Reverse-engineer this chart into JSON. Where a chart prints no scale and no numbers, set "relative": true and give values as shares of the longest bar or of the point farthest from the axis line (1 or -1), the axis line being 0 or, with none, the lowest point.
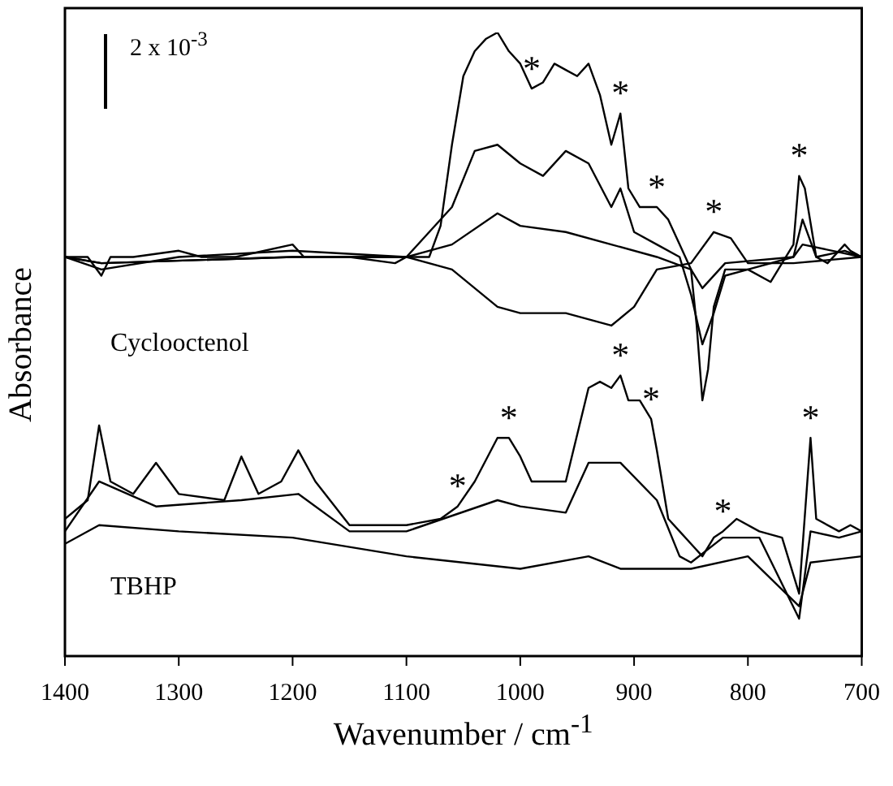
{
  "chart_data": {
    "type": "line",
    "relative": true,
    "xlabel": "Wavenumber / cm$^{-1}$",
    "ylabel": "Absorbance",
    "xlim": [
      1400,
      700
    ],
    "xticks": [
      1400,
      1300,
      1200,
      1100,
      1000,
      900,
      800,
      700
    ],
    "grid": false,
    "legend": false,
    "marker": "none",
    "line_style": "solid",
    "tick_labels": "x",
    "annotations": [
      "2 x 10$^{-3}$",
      "Cyclooctenol",
      "TBHP",
      {
        "text": "*",
        "x": 990,
        "y": 0.91
      },
      {
        "text": "*",
        "x": 912,
        "y": 0.87
      },
      {
        "text": "*",
        "x": 880,
        "y": 0.72
      },
      {
        "text": "*",
        "x": 830,
        "y": 0.68
      },
      {
        "text": "*",
        "x": 755,
        "y": 0.77
      },
      {
        "text": "*",
        "x": 1055,
        "y": 0.24
      },
      {
        "text": "*",
        "x": 1010,
        "y": 0.35
      },
      {
        "text": "*",
        "x": 912,
        "y": 0.45
      },
      {
        "text": "*",
        "x": 885,
        "y": 0.38
      },
      {
        "text": "*",
        "x": 822,
        "y": 0.2
      },
      {
        "text": "*",
        "x": 745,
        "y": 0.35
      }
    ],
    "series": [
      {
        "color": "#000000",
        "x": [
          1400,
          1380,
          1368,
          1360,
          1340,
          1300,
          1280,
          1250,
          1200,
          1190,
          1150,
          1110,
          1100,
          1080,
          1070,
          1060,
          1050,
          1040,
          1030,
          1020,
          1010,
          1000,
          990,
          980,
          970,
          960,
          950,
          940,
          930,
          920,
          912,
          905,
          895,
          880,
          870,
          860,
          850,
          845,
          840,
          835,
          830,
          820,
          800,
          780,
          770,
          760,
          755,
          750,
          740,
          730,
          715,
          710,
          700
        ],
        "values": [
          0.64,
          0.64,
          0.61,
          0.64,
          0.64,
          0.65,
          0.64,
          0.64,
          0.66,
          0.64,
          0.64,
          0.63,
          0.64,
          0.64,
          0.69,
          0.82,
          0.93,
          0.97,
          0.99,
          1,
          0.97,
          0.95,
          0.91,
          0.92,
          0.95,
          0.94,
          0.93,
          0.95,
          0.9,
          0.82,
          0.87,
          0.75,
          0.72,
          0.72,
          0.7,
          0.66,
          0.62,
          0.53,
          0.41,
          0.46,
          0.56,
          0.62,
          0.62,
          0.6,
          0.63,
          0.66,
          0.77,
          0.75,
          0.64,
          0.63,
          0.66,
          0.65,
          0.64
        ]
      },
      {
        "color": "#000000",
        "x": [
          1400,
          1368,
          1300,
          1200,
          1100,
          1060,
          1040,
          1020,
          1000,
          980,
          960,
          940,
          920,
          912,
          900,
          880,
          860,
          850,
          840,
          830,
          820,
          800,
          760,
          752,
          740,
          715,
          700
        ],
        "values": [
          0.64,
          0.62,
          0.64,
          0.65,
          0.64,
          0.72,
          0.81,
          0.82,
          0.79,
          0.77,
          0.81,
          0.79,
          0.72,
          0.75,
          0.68,
          0.66,
          0.64,
          0.58,
          0.5,
          0.55,
          0.61,
          0.62,
          0.64,
          0.7,
          0.64,
          0.65,
          0.64
        ]
      },
      {
        "color": "#000000",
        "x": [
          1400,
          1368,
          1200,
          1100,
          1060,
          1020,
          1000,
          960,
          920,
          880,
          850,
          840,
          820,
          760,
          752,
          700
        ],
        "values": [
          0.64,
          0.63,
          0.64,
          0.64,
          0.66,
          0.71,
          0.69,
          0.68,
          0.66,
          0.64,
          0.62,
          0.59,
          0.63,
          0.64,
          0.66,
          0.64
        ]
      },
      {
        "color": "#000000",
        "x": [
          1400,
          1368,
          1200,
          1100,
          1060,
          1020,
          1000,
          960,
          920,
          900,
          880,
          850,
          830,
          815,
          800,
          760,
          700
        ],
        "values": [
          0.64,
          0.63,
          0.64,
          0.64,
          0.62,
          0.56,
          0.55,
          0.55,
          0.53,
          0.56,
          0.62,
          0.63,
          0.68,
          0.67,
          0.63,
          0.63,
          0.64
        ]
      },
      {
        "color": "#000000",
        "x": [
          1400,
          1380,
          1370,
          1360,
          1340,
          1320,
          1300,
          1260,
          1245,
          1230,
          1210,
          1195,
          1180,
          1150,
          1100,
          1070,
          1055,
          1040,
          1020,
          1010,
          1000,
          990,
          975,
          960,
          940,
          930,
          920,
          912,
          905,
          895,
          885,
          880,
          870,
          860,
          850,
          840,
          830,
          822,
          810,
          790,
          770,
          755,
          745,
          740,
          720,
          710,
          700
        ],
        "values": [
          0.22,
          0.25,
          0.37,
          0.28,
          0.26,
          0.31,
          0.26,
          0.25,
          0.32,
          0.26,
          0.28,
          0.33,
          0.28,
          0.21,
          0.21,
          0.22,
          0.24,
          0.28,
          0.35,
          0.35,
          0.32,
          0.28,
          0.28,
          0.28,
          0.43,
          0.44,
          0.43,
          0.45,
          0.41,
          0.41,
          0.38,
          0.33,
          0.22,
          0.2,
          0.18,
          0.16,
          0.19,
          0.2,
          0.22,
          0.2,
          0.19,
          0.1,
          0.35,
          0.22,
          0.2,
          0.21,
          0.2
        ]
      },
      {
        "color": "#000000",
        "x": [
          1400,
          1370,
          1320,
          1245,
          1195,
          1150,
          1100,
          1020,
          1000,
          960,
          940,
          912,
          880,
          860,
          850,
          822,
          790,
          755,
          745,
          720,
          700
        ],
        "values": [
          0.2,
          0.28,
          0.24,
          0.25,
          0.26,
          0.2,
          0.2,
          0.25,
          0.24,
          0.23,
          0.31,
          0.31,
          0.25,
          0.16,
          0.15,
          0.19,
          0.19,
          0.06,
          0.2,
          0.19,
          0.2
        ]
      },
      {
        "color": "#000000",
        "x": [
          1400,
          1370,
          1300,
          1200,
          1100,
          1000,
          940,
          912,
          850,
          800,
          755,
          745,
          700
        ],
        "values": [
          0.18,
          0.21,
          0.2,
          0.19,
          0.16,
          0.14,
          0.16,
          0.14,
          0.14,
          0.16,
          0.08,
          0.15,
          0.16
        ]
      }
    ]
  }
}
